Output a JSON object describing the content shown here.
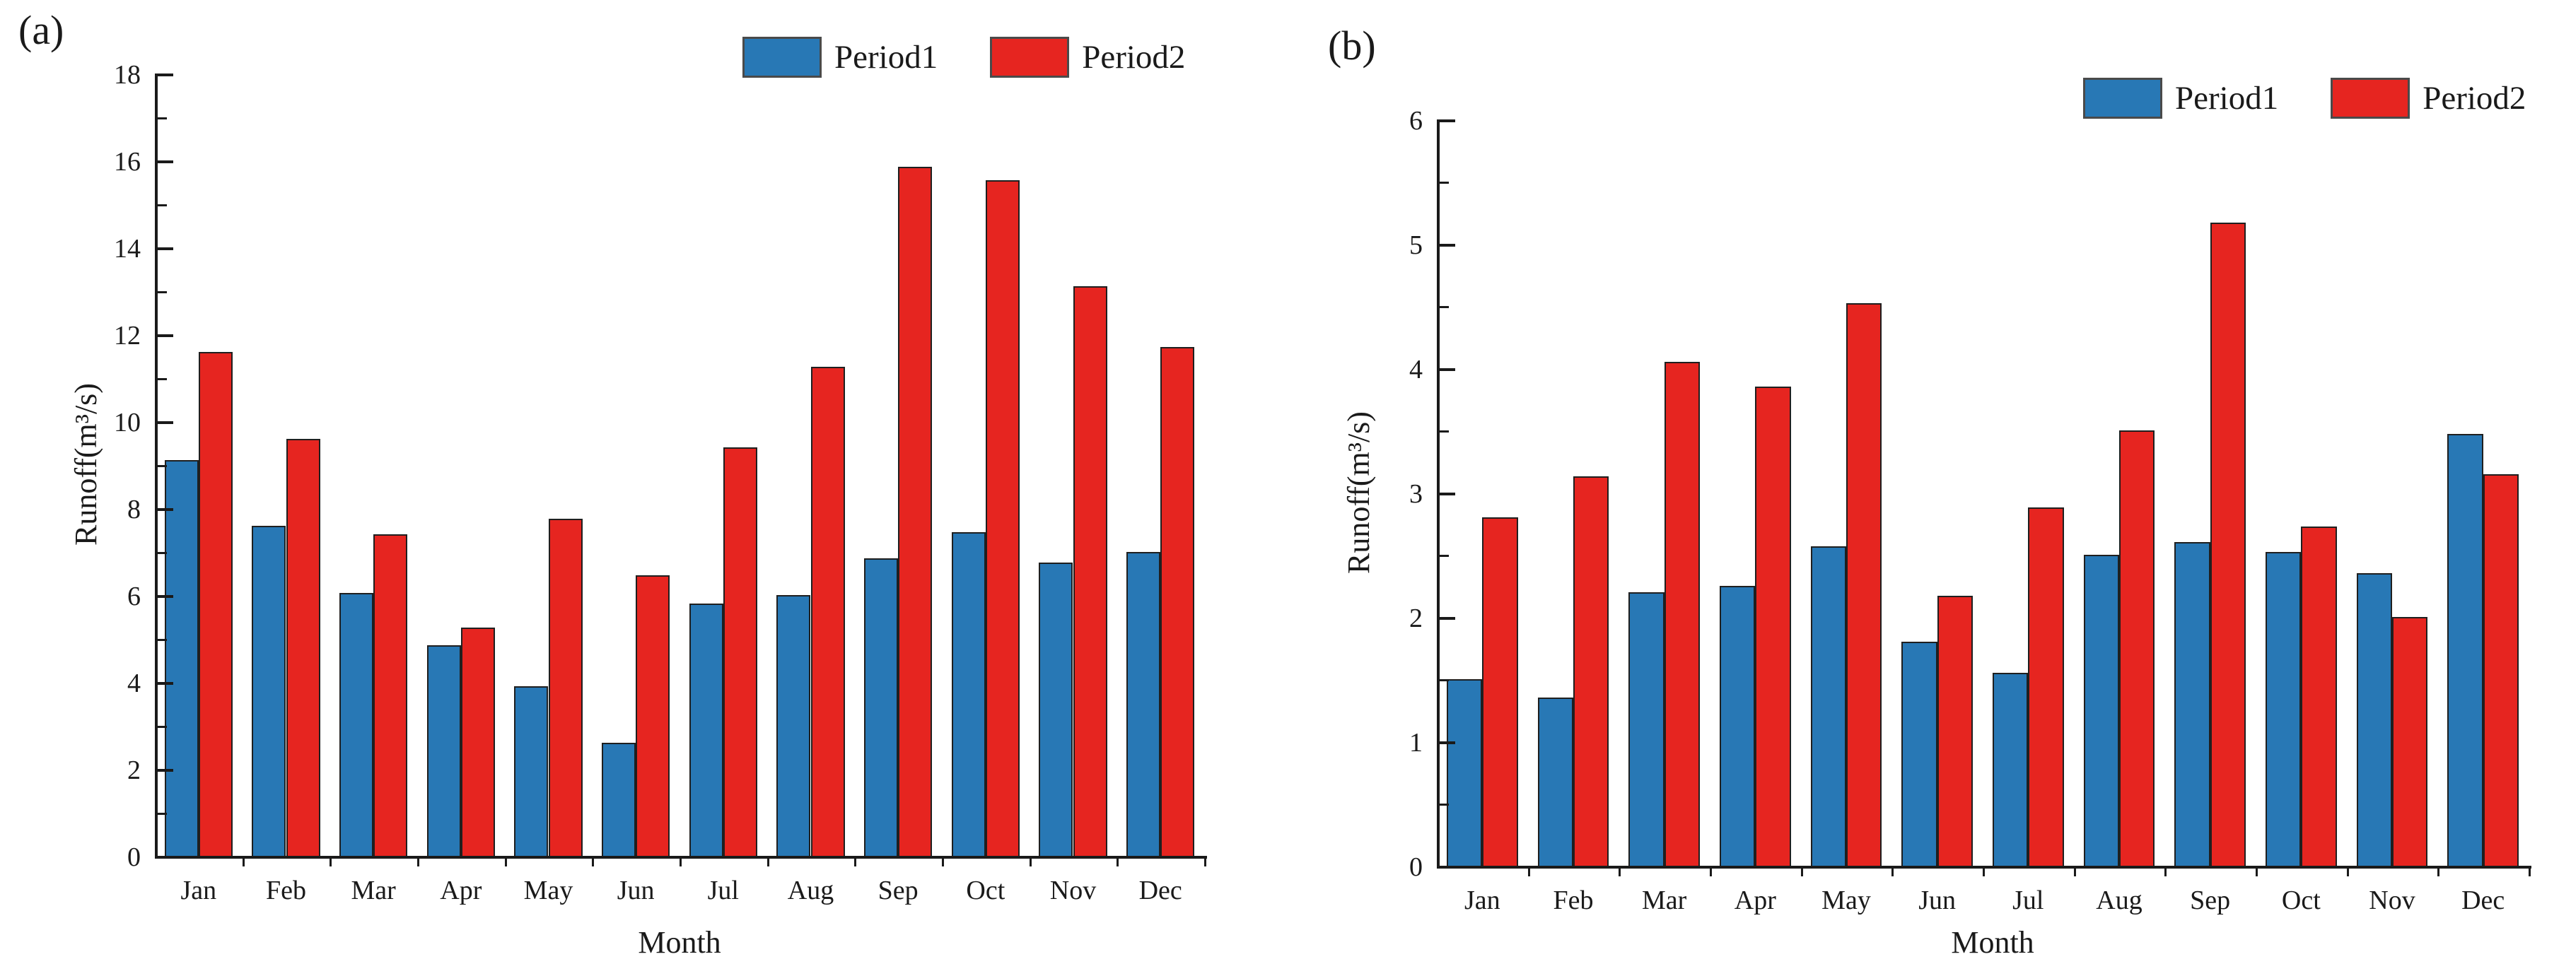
{
  "colors": {
    "period1": "#2878b5",
    "period2": "#e62520",
    "axis": "#1a1a1a"
  },
  "panels": [
    {
      "tag": "(a)",
      "ylabel": "Runoff(m³/s)",
      "xlabel": "Month",
      "legend": [
        "Period1",
        "Period2"
      ]
    },
    {
      "tag": "(b)",
      "ylabel": "Runoff(m³/s)",
      "xlabel": "Month",
      "legend": [
        "Period1",
        "Period2"
      ]
    }
  ],
  "chart_data": [
    {
      "type": "bar",
      "panel": "(a)",
      "title": "",
      "xlabel": "Month",
      "ylabel": "Runoff(m³/s)",
      "categories": [
        "Jan",
        "Feb",
        "Mar",
        "Apr",
        "May",
        "Jun",
        "Jul",
        "Aug",
        "Sep",
        "Oct",
        "Nov",
        "Dec"
      ],
      "series": [
        {
          "name": "Period1",
          "color": "#2878b5",
          "values": [
            9.1,
            7.6,
            6.05,
            4.85,
            3.9,
            2.6,
            5.8,
            6.0,
            6.85,
            7.45,
            6.75,
            7.0
          ]
        },
        {
          "name": "Period2",
          "color": "#e62520",
          "values": [
            11.6,
            9.6,
            7.4,
            5.25,
            7.75,
            6.45,
            9.4,
            11.25,
            15.85,
            15.55,
            13.1,
            11.7
          ]
        }
      ],
      "ylim": [
        0,
        18
      ],
      "ytick_step": 2,
      "minor_tick_step": 1,
      "grid": false,
      "legend_position": "top-right-inside"
    },
    {
      "type": "bar",
      "panel": "(b)",
      "title": "",
      "xlabel": "Month",
      "ylabel": "Runoff(m³/s)",
      "categories": [
        "Jan",
        "Feb",
        "Mar",
        "Apr",
        "May",
        "Jun",
        "Jul",
        "Aug",
        "Sep",
        "Oct",
        "Nov",
        "Dec"
      ],
      "series": [
        {
          "name": "Period1",
          "color": "#2878b5",
          "values": [
            1.5,
            1.35,
            2.2,
            2.25,
            2.57,
            1.8,
            1.55,
            2.5,
            2.6,
            2.52,
            2.35,
            3.47
          ]
        },
        {
          "name": "Period2",
          "color": "#e62520",
          "values": [
            2.8,
            3.13,
            4.05,
            3.85,
            4.52,
            2.17,
            2.88,
            3.5,
            5.17,
            2.73,
            2.0,
            3.15
          ]
        }
      ],
      "ylim": [
        0,
        6
      ],
      "ytick_step": 1,
      "minor_tick_step": 0.5,
      "grid": false,
      "legend_position": "top-right-inside"
    }
  ]
}
